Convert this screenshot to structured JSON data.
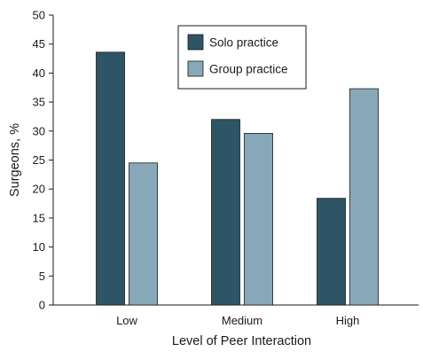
{
  "chart_data": {
    "type": "bar",
    "title": "",
    "xlabel": "Level of Peer Interaction",
    "ylabel": "Surgeons, %",
    "ylim": [
      0,
      50
    ],
    "yticks": [
      0,
      5,
      10,
      15,
      20,
      25,
      30,
      35,
      40,
      45,
      50
    ],
    "categories": [
      "Low",
      "Medium",
      "High"
    ],
    "series": [
      {
        "name": "Solo practice",
        "values": [
          43.6,
          32.0,
          18.4
        ],
        "color": "#2e5566"
      },
      {
        "name": "Group practice",
        "values": [
          24.5,
          29.6,
          37.3
        ],
        "color": "#87a8b8"
      }
    ],
    "legend_position": "top-center",
    "grid": false
  }
}
